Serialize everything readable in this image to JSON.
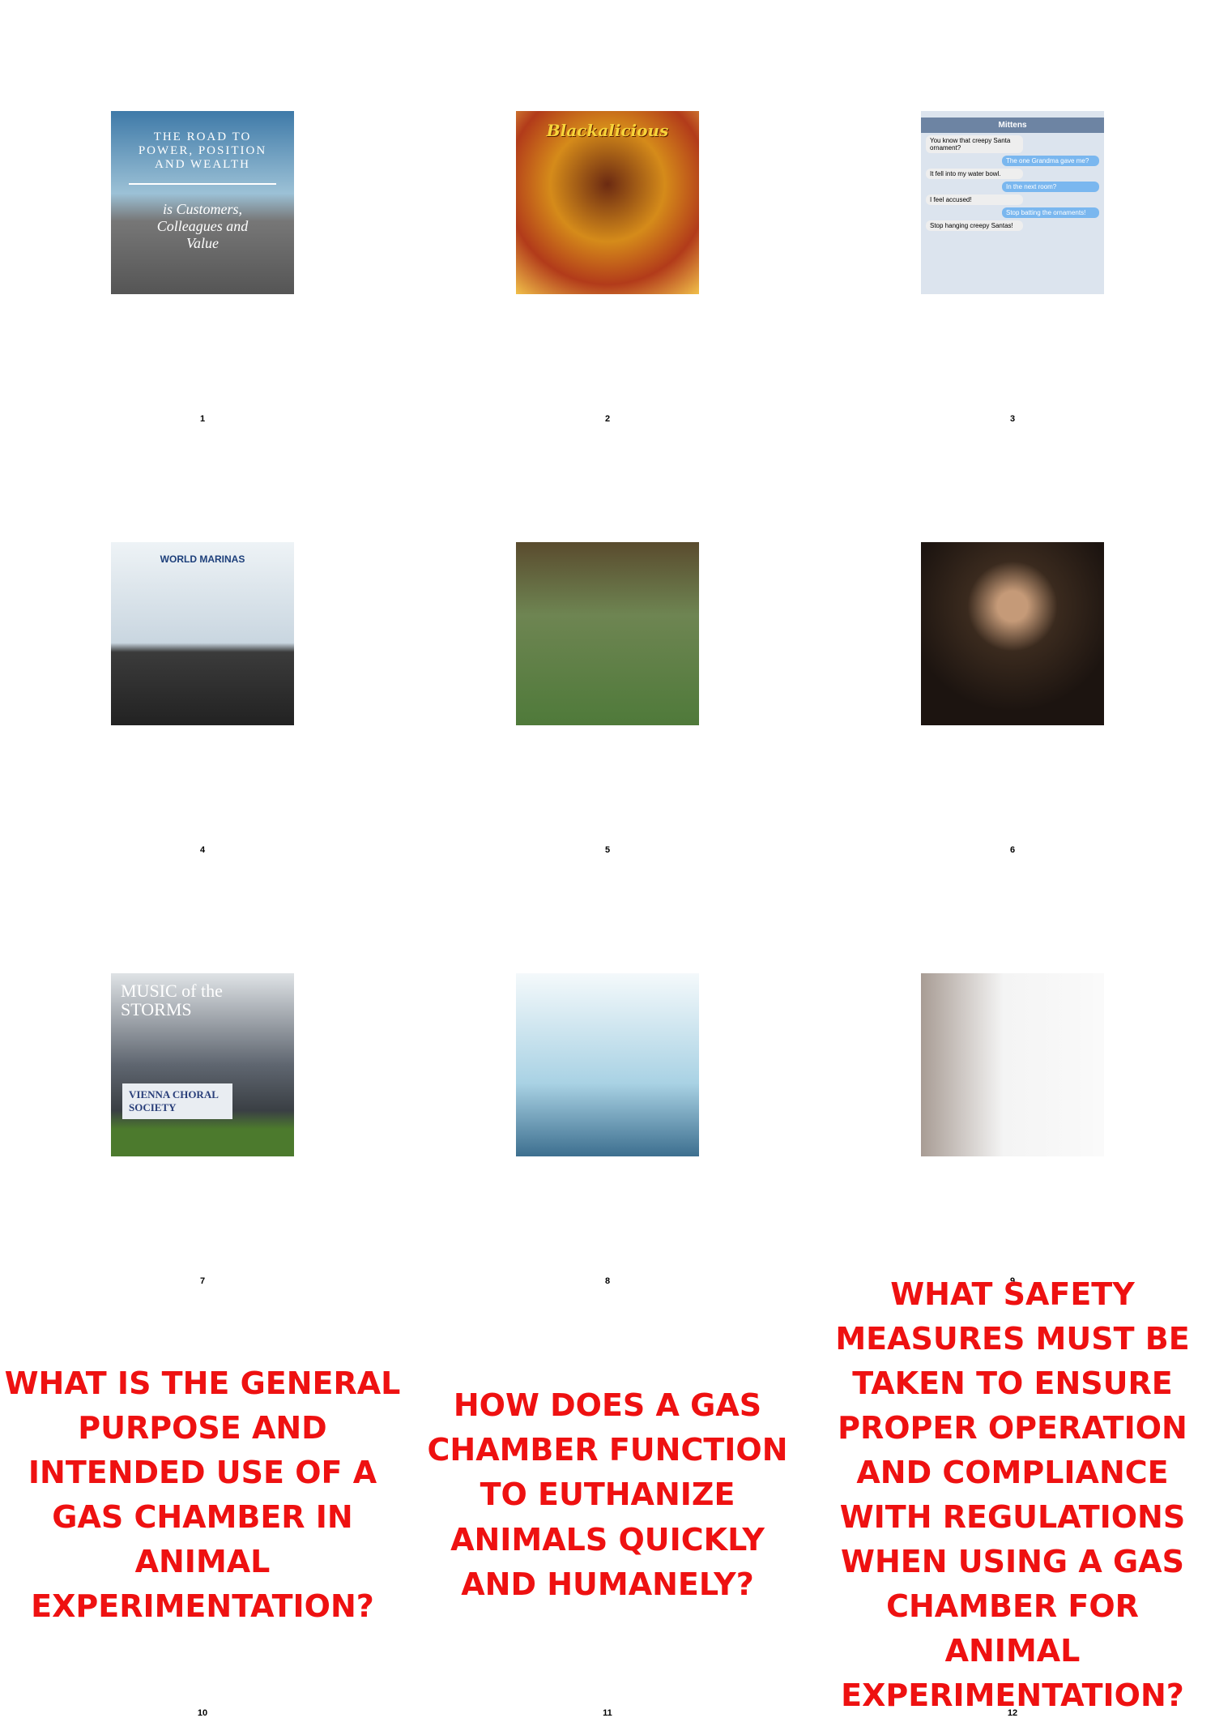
{
  "grid": {
    "cells": [
      {
        "number": "1",
        "image": {
          "title": "THE ROAD TO POWER, POSITION AND WEALTH",
          "subtitle": "is Customers, Colleagues and Value"
        }
      },
      {
        "number": "2",
        "image": {
          "title": "Blackalicious"
        }
      },
      {
        "number": "3",
        "image": {
          "title": "Mittens",
          "messages": [
            "You know that creepy Santa ornament?",
            "The one Grandma gave me?",
            "It fell into my water bowl.",
            "In the next room?",
            "I feel accused!",
            "Stop batting the ornaments!",
            "Stop hanging creepy Santas!"
          ]
        }
      },
      {
        "number": "4",
        "image": {
          "title": "WORLD MARINAS"
        }
      },
      {
        "number": "5",
        "image": {}
      },
      {
        "number": "6",
        "image": {}
      },
      {
        "number": "7",
        "image": {
          "title": "MUSIC of the STORMS",
          "subtitle": "VIENNA CHORAL SOCIETY"
        }
      },
      {
        "number": "8",
        "image": {}
      },
      {
        "number": "9",
        "image": {}
      },
      {
        "number": "10",
        "text": "WHAT IS THE GENERAL PURPOSE AND INTENDED USE OF A GAS CHAMBER IN ANIMAL EXPERIMENTATION?"
      },
      {
        "number": "11",
        "text": "HOW DOES A GAS CHAMBER FUNCTION TO EUTHANIZE ANIMALS QUICKLY AND HUMANELY?"
      },
      {
        "number": "12",
        "text": "WHAT SAFETY MEASURES MUST BE TAKEN TO ENSURE PROPER OPERATION AND COMPLIANCE WITH REGULATIONS WHEN USING A GAS CHAMBER FOR ANIMAL EXPERIMENTATION?"
      }
    ]
  }
}
